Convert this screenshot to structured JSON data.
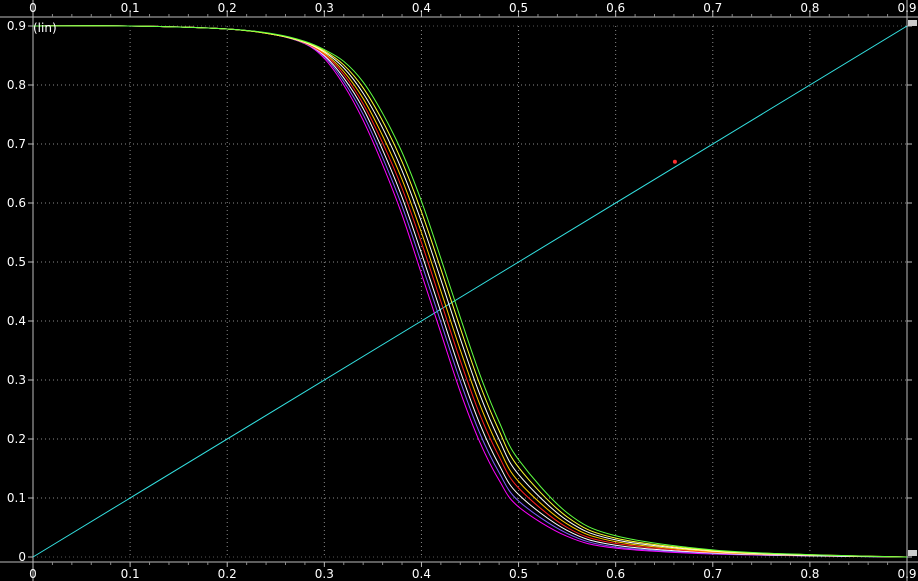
{
  "chart_data": {
    "type": "line",
    "title": "",
    "xlabel": "",
    "ylabel": "(lin)",
    "xlim": [
      0,
      0.9
    ],
    "ylim": [
      0,
      0.9
    ],
    "x_ticks": [
      "0",
      "0.1",
      "0.2",
      "0.3",
      "0.4",
      "0.5",
      "0.6",
      "0.7",
      "0.8",
      "0.9"
    ],
    "y_ticks": [
      "0",
      "0.1",
      "0.2",
      "0.3",
      "0.4",
      "0.5",
      "0.6",
      "0.7",
      "0.8",
      "0.9"
    ],
    "grid": true,
    "background": "#000000",
    "grid_color": "#8a8a8a",
    "tick_label_color": "#ffffff",
    "series": [
      {
        "color": "#33e0e0",
        "x": [
          0,
          0.9
        ],
        "y": [
          0,
          0.9
        ]
      },
      {
        "color": "#ff00ff",
        "x": [
          0,
          0.1,
          0.2,
          0.25,
          0.28,
          0.3,
          0.32,
          0.34,
          0.36,
          0.38,
          0.4,
          0.42,
          0.44,
          0.46,
          0.48,
          0.5,
          0.55,
          0.6,
          0.7,
          0.8,
          0.9
        ],
        "y": [
          0.9,
          0.9,
          0.895,
          0.885,
          0.87,
          0.845,
          0.8,
          0.74,
          0.665,
          0.58,
          0.48,
          0.38,
          0.28,
          0.195,
          0.13,
          0.085,
          0.035,
          0.015,
          0.005,
          0.002,
          0
        ]
      },
      {
        "color": "#8060ff",
        "x": [
          0,
          0.1,
          0.2,
          0.25,
          0.28,
          0.3,
          0.32,
          0.34,
          0.36,
          0.38,
          0.4,
          0.42,
          0.44,
          0.46,
          0.48,
          0.5,
          0.55,
          0.6,
          0.7,
          0.8,
          0.9
        ],
        "y": [
          0.9,
          0.9,
          0.895,
          0.885,
          0.87,
          0.848,
          0.806,
          0.75,
          0.677,
          0.595,
          0.498,
          0.398,
          0.298,
          0.21,
          0.143,
          0.095,
          0.04,
          0.017,
          0.006,
          0.002,
          0
        ]
      },
      {
        "color": "#ffffff",
        "x": [
          0,
          0.1,
          0.2,
          0.25,
          0.28,
          0.3,
          0.32,
          0.34,
          0.36,
          0.38,
          0.4,
          0.42,
          0.44,
          0.46,
          0.48,
          0.5,
          0.55,
          0.6,
          0.7,
          0.8,
          0.9
        ],
        "y": [
          0.9,
          0.9,
          0.895,
          0.885,
          0.871,
          0.85,
          0.812,
          0.76,
          0.69,
          0.61,
          0.515,
          0.415,
          0.315,
          0.226,
          0.156,
          0.106,
          0.045,
          0.02,
          0.007,
          0.002,
          0
        ]
      },
      {
        "color": "#ff2020",
        "x": [
          0,
          0.1,
          0.2,
          0.25,
          0.28,
          0.3,
          0.32,
          0.34,
          0.36,
          0.38,
          0.4,
          0.42,
          0.44,
          0.46,
          0.48,
          0.5,
          0.55,
          0.6,
          0.7,
          0.8,
          0.9
        ],
        "y": [
          0.9,
          0.9,
          0.895,
          0.885,
          0.871,
          0.852,
          0.818,
          0.768,
          0.702,
          0.625,
          0.533,
          0.433,
          0.333,
          0.242,
          0.17,
          0.117,
          0.05,
          0.023,
          0.008,
          0.003,
          0
        ]
      },
      {
        "color": "#ffd000",
        "x": [
          0,
          0.1,
          0.2,
          0.25,
          0.28,
          0.3,
          0.32,
          0.34,
          0.36,
          0.38,
          0.4,
          0.42,
          0.44,
          0.46,
          0.48,
          0.5,
          0.55,
          0.6,
          0.7,
          0.8,
          0.9
        ],
        "y": [
          0.9,
          0.9,
          0.895,
          0.885,
          0.872,
          0.854,
          0.823,
          0.777,
          0.714,
          0.64,
          0.55,
          0.451,
          0.351,
          0.259,
          0.184,
          0.128,
          0.056,
          0.026,
          0.009,
          0.003,
          0
        ]
      },
      {
        "color": "#ffffff",
        "x": [
          0,
          0.1,
          0.2,
          0.25,
          0.28,
          0.3,
          0.32,
          0.34,
          0.36,
          0.38,
          0.4,
          0.42,
          0.44,
          0.46,
          0.48,
          0.5,
          0.55,
          0.6,
          0.7,
          0.8,
          0.9
        ],
        "y": [
          0.9,
          0.9,
          0.895,
          0.885,
          0.872,
          0.856,
          0.829,
          0.786,
          0.727,
          0.655,
          0.568,
          0.47,
          0.37,
          0.276,
          0.199,
          0.14,
          0.062,
          0.029,
          0.01,
          0.003,
          0
        ]
      },
      {
        "color": "#ffff30",
        "x": [
          0,
          0.1,
          0.2,
          0.25,
          0.28,
          0.3,
          0.32,
          0.34,
          0.36,
          0.38,
          0.4,
          0.42,
          0.44,
          0.46,
          0.48,
          0.5,
          0.55,
          0.6,
          0.7,
          0.8,
          0.9
        ],
        "y": [
          0.9,
          0.9,
          0.895,
          0.885,
          0.873,
          0.858,
          0.834,
          0.795,
          0.739,
          0.67,
          0.585,
          0.488,
          0.388,
          0.293,
          0.214,
          0.152,
          0.068,
          0.032,
          0.011,
          0.004,
          0
        ]
      },
      {
        "color": "#60ff40",
        "x": [
          0,
          0.1,
          0.2,
          0.25,
          0.28,
          0.3,
          0.32,
          0.34,
          0.36,
          0.38,
          0.4,
          0.42,
          0.44,
          0.46,
          0.48,
          0.5,
          0.55,
          0.6,
          0.7,
          0.8,
          0.9
        ],
        "y": [
          0.9,
          0.9,
          0.895,
          0.886,
          0.874,
          0.86,
          0.84,
          0.805,
          0.752,
          0.686,
          0.603,
          0.506,
          0.406,
          0.31,
          0.229,
          0.165,
          0.075,
          0.036,
          0.012,
          0.004,
          0
        ]
      }
    ],
    "markers": [
      {
        "x": 0.661,
        "y": 0.67,
        "color": "#ff3030"
      }
    ]
  }
}
